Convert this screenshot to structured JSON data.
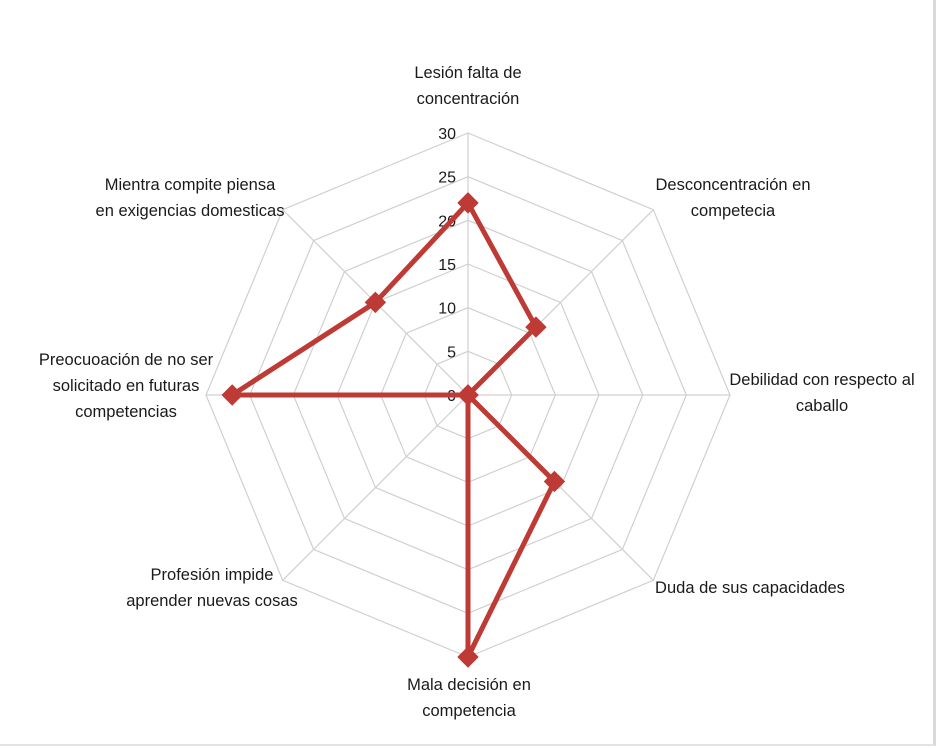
{
  "chart_data": {
    "type": "radar",
    "title": "",
    "rmin": 0,
    "rmax": 30,
    "ticks": [
      "0",
      "5",
      "10",
      "15",
      "20",
      "25",
      "30"
    ],
    "grid": true,
    "legend": "none",
    "categories": [
      [
        "Lesión falta de",
        "concentración"
      ],
      [
        "Desconcentración en",
        "competecia"
      ],
      [
        "Debilidad con respecto al",
        "caballo"
      ],
      [
        "Duda de sus capacidades"
      ],
      [
        "Mala decisión en",
        "competencia"
      ],
      [
        "Profesión impide",
        "aprender nuevas cosas"
      ],
      [
        "Preocuoación de no ser",
        "solicitado en futuras",
        "competencias"
      ],
      [
        "Mientra compite piensa",
        "en exigencias domesticas"
      ]
    ],
    "series": [
      {
        "values": [
          22,
          11,
          0,
          14,
          30,
          0,
          27,
          15
        ],
        "color": "#be3a35"
      }
    ]
  }
}
